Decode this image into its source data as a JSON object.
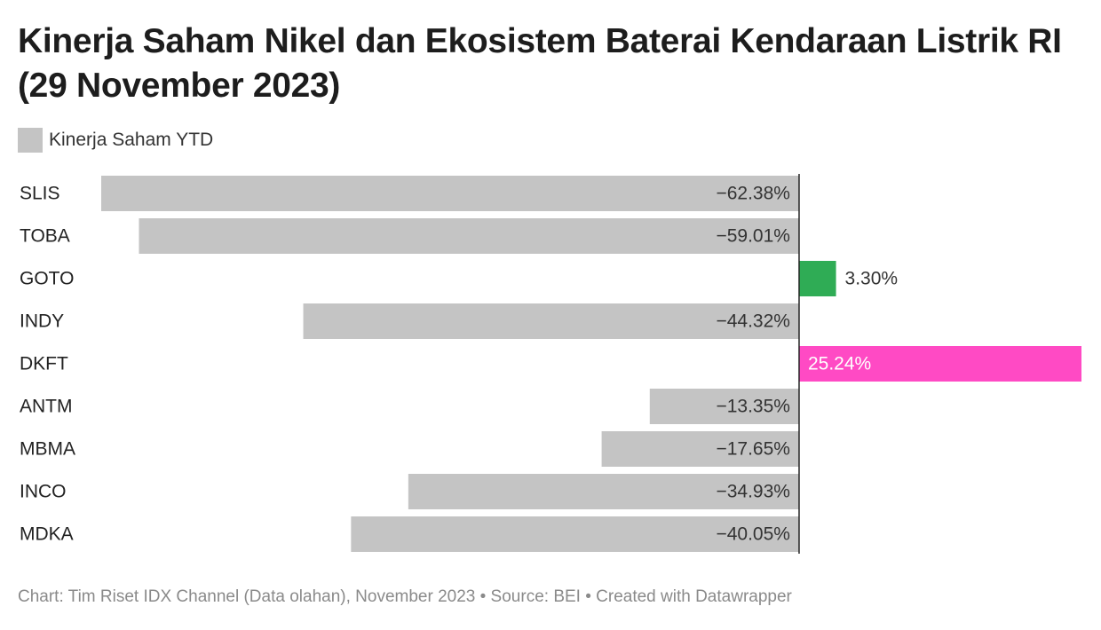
{
  "title": "Kinerja Saham Nikel dan Ekosistem Baterai Kendaraan Listrik RI (29 November 2023)",
  "legend": {
    "label": "Kinerja Saham YTD",
    "color": "#c4c4c4"
  },
  "footer": "Chart: Tim Riset IDX Channel (Data olahan), November 2023 • Source: BEI • Created with Datawrapper",
  "colors": {
    "default_bar": "#c4c4c4",
    "positive_goto": "#2fac55",
    "positive_dkft": "#ff4ac4",
    "zero_line": "#222222",
    "label_dark": "#333333",
    "label_light": "#ffffff"
  },
  "chart_data": {
    "type": "bar",
    "orientation": "horizontal",
    "categories": [
      "SLIS",
      "TOBA",
      "GOTO",
      "INDY",
      "DKFT",
      "ANTM",
      "MBMA",
      "INCO",
      "MDKA"
    ],
    "series": [
      {
        "name": "Kinerja Saham YTD",
        "values": [
          -62.38,
          -59.01,
          3.3,
          -44.32,
          25.24,
          -13.35,
          -17.65,
          -34.93,
          -40.05
        ],
        "labels": [
          "−62.38%",
          "−59.01%",
          "3.30%",
          "−44.32%",
          "25.24%",
          "−13.35%",
          "−17.65%",
          "−34.93%",
          "−40.05%"
        ],
        "bar_colors": [
          "#c4c4c4",
          "#c4c4c4",
          "#2fac55",
          "#c4c4c4",
          "#ff4ac4",
          "#c4c4c4",
          "#c4c4c4",
          "#c4c4c4",
          "#c4c4c4"
        ],
        "label_colors": [
          "#333333",
          "#333333",
          "#333333",
          "#333333",
          "#ffffff",
          "#333333",
          "#333333",
          "#333333",
          "#333333"
        ]
      }
    ],
    "xlim": [
      -62.38,
      25.24
    ],
    "grid": false,
    "legend_position": "top-left"
  }
}
